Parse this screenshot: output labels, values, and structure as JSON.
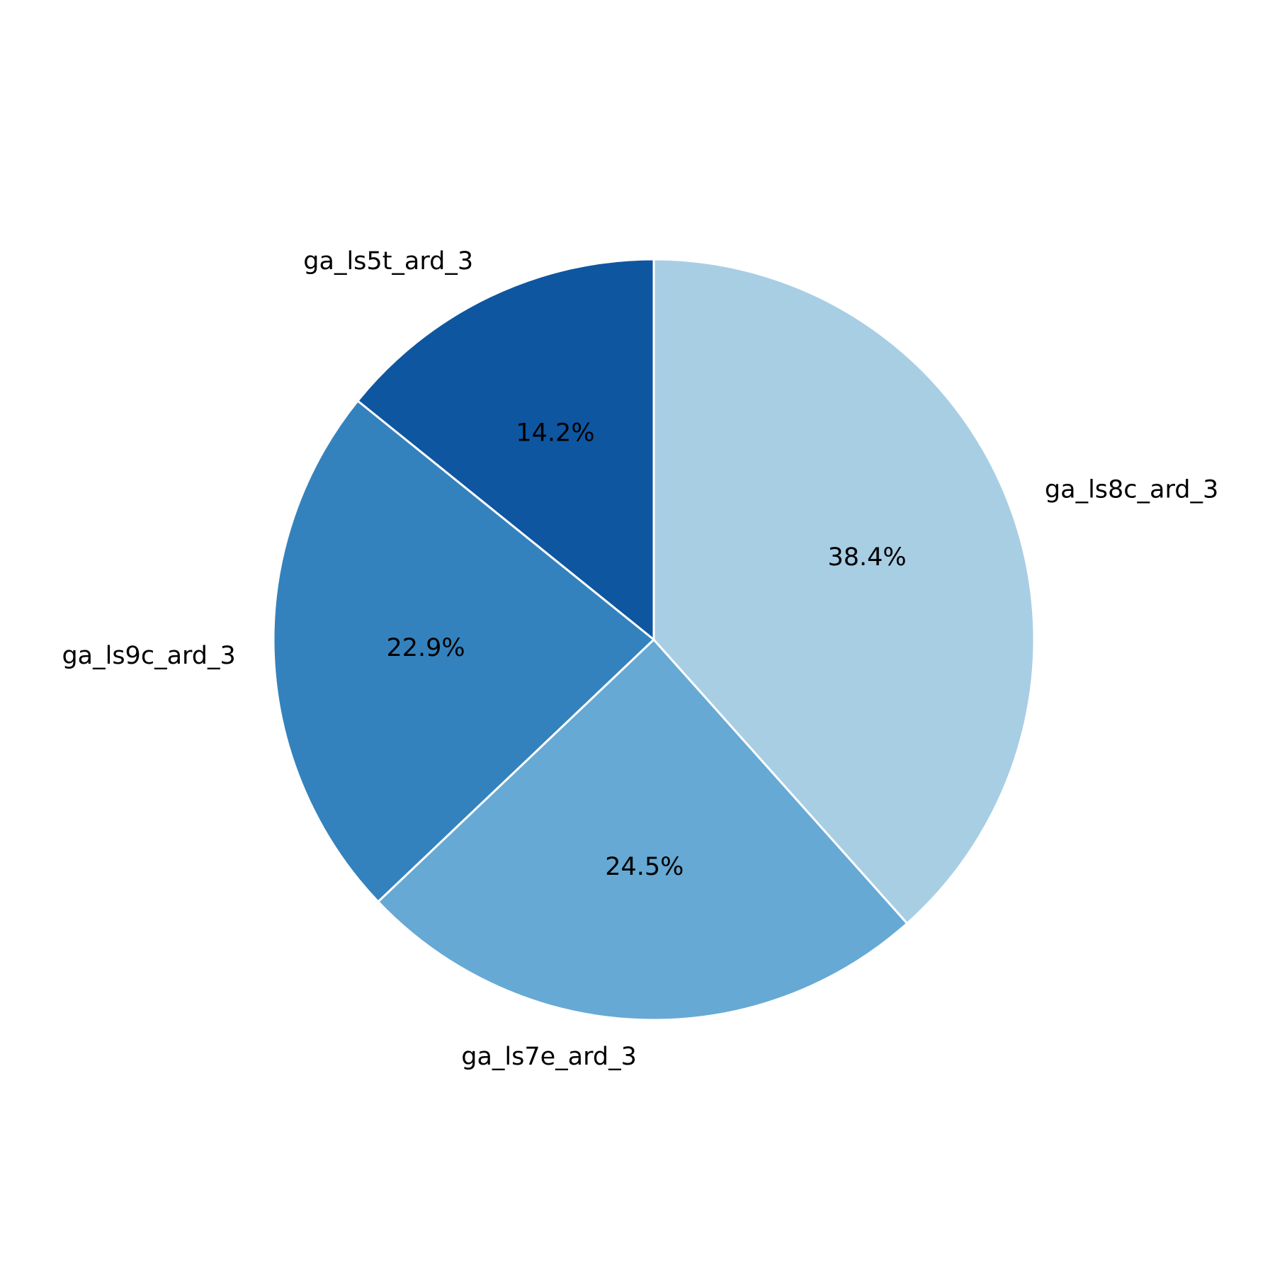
{
  "chart_data": {
    "type": "pie",
    "categories": [
      "ga_ls5t_ard_3",
      "ga_ls9c_ard_3",
      "ga_ls7e_ard_3",
      "ga_ls8c_ard_3"
    ],
    "values": [
      14.2,
      22.9,
      24.5,
      38.4
    ],
    "value_labels": [
      "14.2%",
      "22.9%",
      "24.5%",
      "38.4%"
    ],
    "colors": [
      "#0e56a0",
      "#3482bd",
      "#66a9d4",
      "#a8cee4"
    ]
  }
}
